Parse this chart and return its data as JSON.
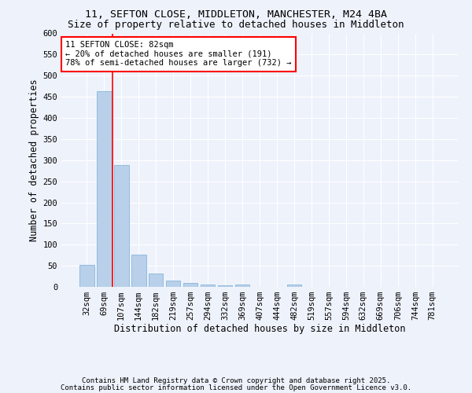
{
  "title_line1": "11, SEFTON CLOSE, MIDDLETON, MANCHESTER, M24 4BA",
  "title_line2": "Size of property relative to detached houses in Middleton",
  "xlabel": "Distribution of detached houses by size in Middleton",
  "ylabel": "Number of detached properties",
  "categories": [
    "32sqm",
    "69sqm",
    "107sqm",
    "144sqm",
    "182sqm",
    "219sqm",
    "257sqm",
    "294sqm",
    "332sqm",
    "369sqm",
    "407sqm",
    "444sqm",
    "482sqm",
    "519sqm",
    "557sqm",
    "594sqm",
    "632sqm",
    "669sqm",
    "706sqm",
    "744sqm",
    "781sqm"
  ],
  "values": [
    53,
    463,
    288,
    76,
    31,
    15,
    9,
    5,
    4,
    5,
    0,
    0,
    5,
    0,
    0,
    0,
    0,
    0,
    0,
    0,
    0
  ],
  "bar_color": "#b8d0ea",
  "bar_edge_color": "#7aadd4",
  "red_line_x": 1.5,
  "annotation_title": "11 SEFTON CLOSE: 82sqm",
  "annotation_line2": "← 20% of detached houses are smaller (191)",
  "annotation_line3": "78% of semi-detached houses are larger (732) →",
  "ylim": [
    0,
    600
  ],
  "yticks": [
    0,
    50,
    100,
    150,
    200,
    250,
    300,
    350,
    400,
    450,
    500,
    550,
    600
  ],
  "footnote_line1": "Contains HM Land Registry data © Crown copyright and database right 2025.",
  "footnote_line2": "Contains public sector information licensed under the Open Government Licence v3.0.",
  "bg_color": "#eef2fb",
  "grid_color": "#ffffff",
  "title_fontsize": 9.5,
  "subtitle_fontsize": 9,
  "axis_label_fontsize": 8.5,
  "tick_fontsize": 7.5,
  "annotation_fontsize": 7.5,
  "footnote_fontsize": 6.5
}
